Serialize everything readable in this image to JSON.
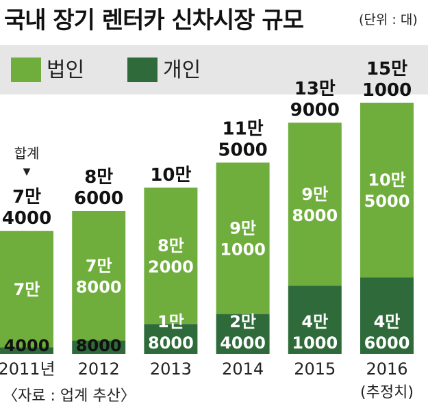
{
  "header": {
    "title": "국내 장기 렌터카 신차시장 규모",
    "unit": "(단위 : 대)"
  },
  "footer": {
    "source": "〈자료 : 업계 추산〉"
  },
  "colors": {
    "legend_bg": "#e6e6e6",
    "corporate": "#6fae3c",
    "individual": "#2f6b3a",
    "text_dark": "#111111",
    "text_white": "#ffffff"
  },
  "chart_data": {
    "type": "bar",
    "stacked": true,
    "categories": [
      "2011년",
      "2012",
      "2013",
      "2014",
      "2015",
      "2016"
    ],
    "category_notes": [
      "",
      "",
      "",
      "",
      "",
      "(추정치)"
    ],
    "series": [
      {
        "name": "개인",
        "values": [
          4000,
          8000,
          18000,
          24000,
          41000,
          46000
        ],
        "labels": [
          [
            "4000"
          ],
          [
            "8000"
          ],
          [
            "1만",
            "8000"
          ],
          [
            "2만",
            "4000"
          ],
          [
            "4만",
            "1000"
          ],
          [
            "4만",
            "6000"
          ]
        ]
      },
      {
        "name": "법인",
        "values": [
          70000,
          78000,
          82000,
          91000,
          98000,
          105000
        ],
        "labels": [
          [
            "7만"
          ],
          [
            "7만",
            "8000"
          ],
          [
            "8만",
            "2000"
          ],
          [
            "9만",
            "1000"
          ],
          [
            "9만",
            "8000"
          ],
          [
            "10만",
            "5000"
          ]
        ]
      }
    ],
    "totals": {
      "values": [
        74000,
        86000,
        100000,
        115000,
        139000,
        151000
      ],
      "labels": [
        [
          "7만",
          "4000"
        ],
        [
          "8만",
          "6000"
        ],
        [
          "10만"
        ],
        [
          "11만",
          "5000"
        ],
        [
          "13만",
          "9000"
        ],
        [
          "15만",
          "1000"
        ]
      ],
      "first_note": "합계",
      "first_marker": "▼"
    },
    "legend": [
      "법인",
      "개인"
    ],
    "legend_position": "top-left",
    "ylim": [
      0,
      151000
    ],
    "grid": false
  }
}
